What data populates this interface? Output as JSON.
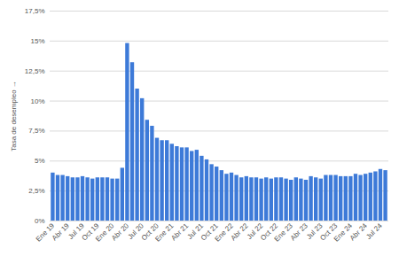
{
  "chart_data": {
    "type": "bar",
    "y_label": "Tasa de desempleo",
    "categories": [
      "Ene 19",
      null,
      null,
      "Abr 19",
      null,
      null,
      "Jul 19",
      null,
      null,
      "Oct 19",
      null,
      null,
      "Ene 20",
      null,
      null,
      "Abr 20",
      null,
      null,
      "Jul 20",
      null,
      null,
      "Oct 20",
      null,
      null,
      "Ene 21",
      null,
      null,
      "Abr 21",
      null,
      null,
      "Jul 21",
      null,
      null,
      "Oct 21",
      null,
      null,
      "Ene 22",
      null,
      null,
      "Abr 22",
      null,
      null,
      "Jul 22",
      null,
      null,
      "Oct 22",
      null,
      null,
      "Ene 23",
      null,
      null,
      "Abr 23",
      null,
      null,
      "Jul 23",
      null,
      null,
      "Oct 23",
      null,
      null,
      "Ene 24",
      null,
      null,
      "Abr 24",
      null,
      null,
      "Jul 24",
      null
    ],
    "values": [
      4.0,
      3.8,
      3.8,
      3.7,
      3.6,
      3.6,
      3.7,
      3.6,
      3.5,
      3.6,
      3.6,
      3.6,
      3.5,
      3.5,
      4.4,
      14.8,
      13.2,
      11.0,
      10.2,
      8.4,
      7.9,
      6.9,
      6.7,
      6.7,
      6.4,
      6.2,
      6.1,
      6.1,
      5.8,
      5.9,
      5.4,
      5.1,
      4.7,
      4.5,
      4.2,
      3.9,
      4.0,
      3.8,
      3.6,
      3.7,
      3.6,
      3.6,
      3.5,
      3.6,
      3.5,
      3.6,
      3.6,
      3.5,
      3.4,
      3.6,
      3.5,
      3.4,
      3.7,
      3.6,
      3.5,
      3.8,
      3.8,
      3.8,
      3.7,
      3.7,
      3.7,
      3.9,
      3.8,
      3.9,
      4.0,
      4.1,
      4.3,
      4.2
    ],
    "color": "#3d7ad8",
    "ylim": [
      0,
      17.5
    ],
    "yticks": [
      {
        "value": 0,
        "label": "0%"
      },
      {
        "value": 2.5,
        "label": "2,5%"
      },
      {
        "value": 5,
        "label": "5%"
      },
      {
        "value": 7.5,
        "label": "7,5%"
      },
      {
        "value": 10,
        "label": "10%"
      },
      {
        "value": 12.5,
        "label": "12,5%"
      },
      {
        "value": 15,
        "label": "15%"
      },
      {
        "value": 17.5,
        "label": "17,5%"
      }
    ],
    "grid": true
  }
}
